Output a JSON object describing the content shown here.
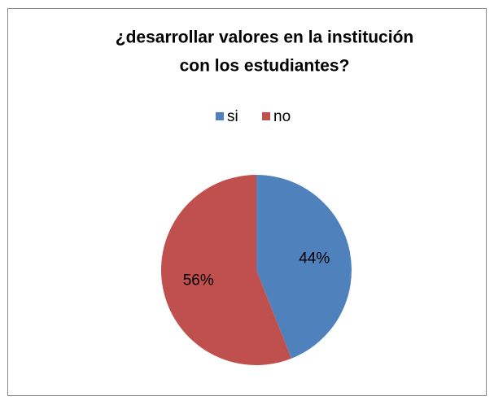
{
  "chart_data": {
    "type": "pie",
    "title": [
      "¿desarrollar valores en la institución",
      "con los estudiantes?"
    ],
    "categories": [
      "si",
      "no"
    ],
    "values": [
      44,
      56
    ],
    "value_labels": [
      "44%",
      "56%"
    ],
    "colors": [
      "#4f81bd",
      "#c0504d"
    ],
    "legend": "top"
  }
}
